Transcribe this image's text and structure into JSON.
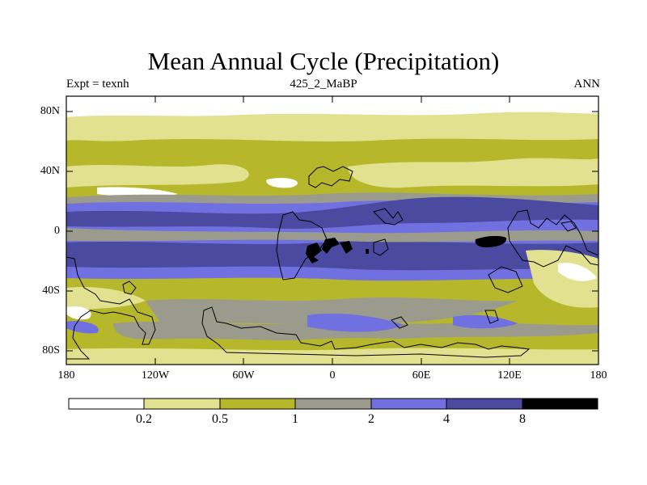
{
  "title": "Mean Annual Cycle (Precipitation)",
  "subtitle_left": "Expt = texnh",
  "subtitle_center": "425_2_MaBP",
  "subtitle_right": "ANN",
  "lat_labels": [
    "80N",
    "40N",
    "0",
    "40S",
    "80S"
  ],
  "lon_labels": [
    "180",
    "120W",
    "60W",
    "0",
    "60E",
    "120E",
    "180"
  ],
  "colorbar": {
    "labels": [
      "0.2",
      "0.5",
      "1",
      "2",
      "4",
      "8"
    ],
    "colors": [
      "#ffffff",
      "#e1e18f",
      "#b7b72c",
      "#9b9b8d",
      "#7070e0",
      "#4a4aa0",
      "#000000"
    ]
  },
  "colors": {
    "frame": "#000000",
    "coast": "#000000"
  }
}
